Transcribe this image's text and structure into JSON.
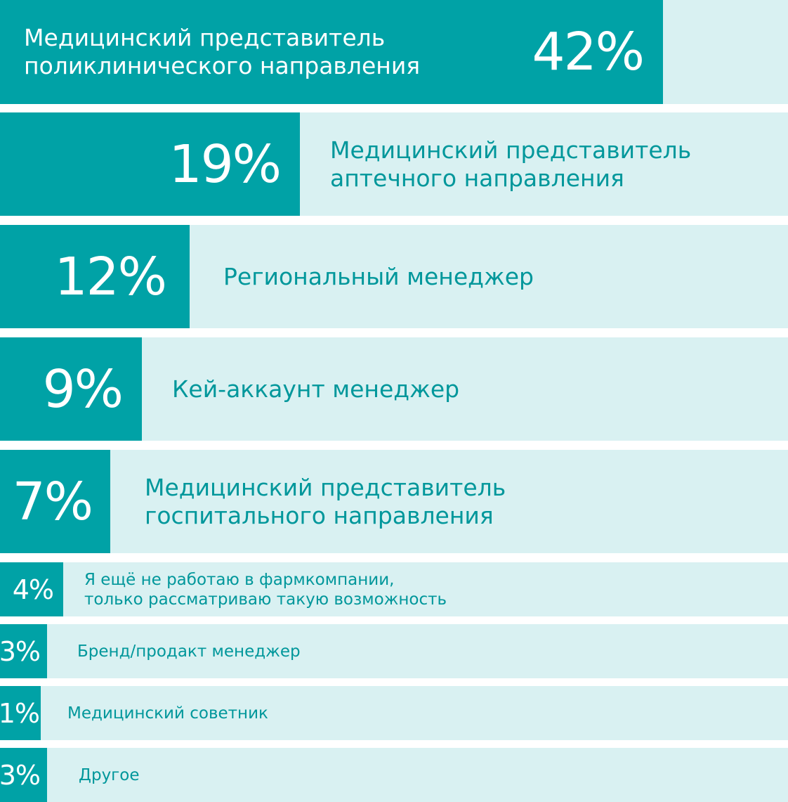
{
  "colors": {
    "bar_fill": "#00a2a6",
    "bar_track": "#d9f1f2",
    "label_on_track": "#00979b",
    "label_on_fill": "#ffffff"
  },
  "chart_data": {
    "type": "bar",
    "orientation": "horizontal",
    "title": "",
    "xlabel": "",
    "ylabel": "",
    "xlim": [
      0,
      42
    ],
    "grid": false,
    "legend": "none",
    "categories": [
      "Медицинский представитель\nполиклинического направления",
      "Медицинский представитель\nаптечного направления",
      "Региональный менеджер",
      "Кей-аккаунт менеджер",
      "Медицинский представитель\nгоспитального направления",
      "Я ещё не работаю в фармкомпании,\nтолько рассматриваю такую возможность",
      "Бренд/продакт менеджер",
      "Медицинский советник",
      "Другое"
    ],
    "values": [
      42,
      19,
      12,
      9,
      7,
      4,
      3,
      1,
      3
    ],
    "value_labels": [
      "42%",
      "19%",
      "12%",
      "9%",
      "7%",
      "4%",
      "3%",
      "1%",
      "3%"
    ]
  }
}
